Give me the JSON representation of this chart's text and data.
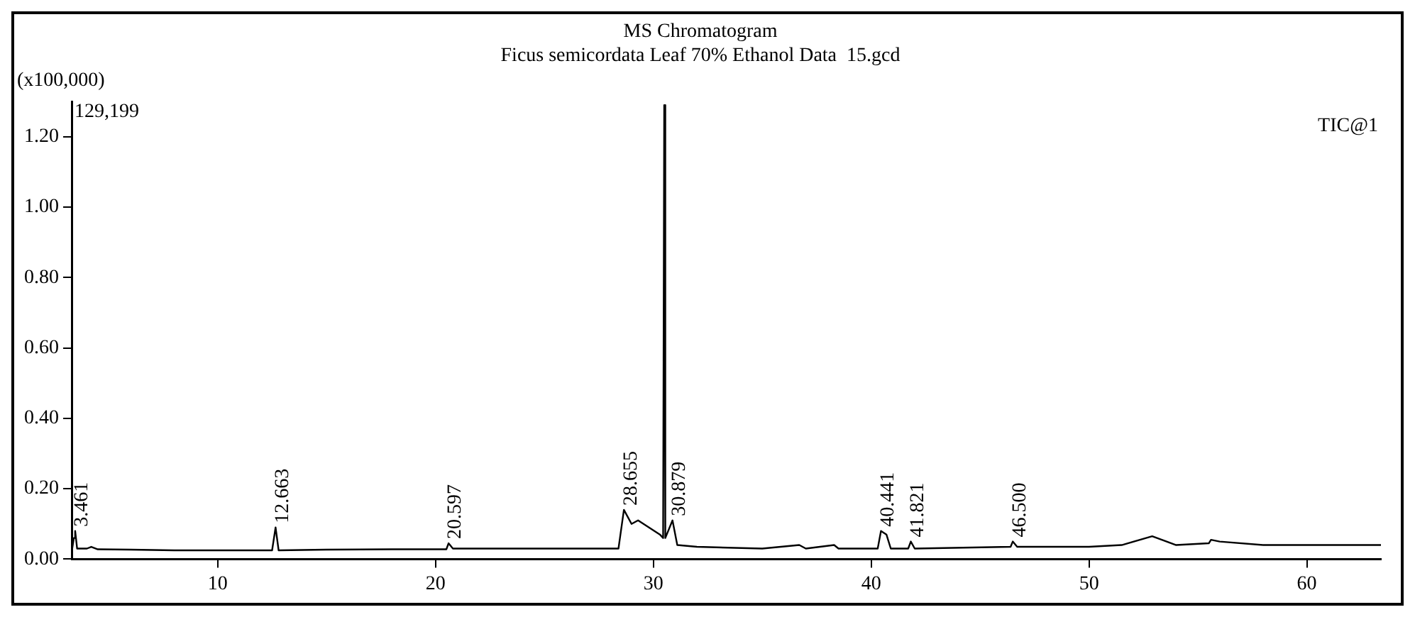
{
  "chart_data": {
    "type": "line",
    "title": "MS Chromatogram",
    "subtitle": "Ficus semicordata Leaf 70% Ethanol Data  15.gcd",
    "ylabel": "(x100,000)",
    "x": [
      3.3,
      3.4,
      3.46,
      3.55,
      4.0,
      4.2,
      4.5,
      6,
      8,
      10,
      12.5,
      12.66,
      12.8,
      15,
      18,
      20.5,
      20.6,
      20.8,
      24,
      28.4,
      28.65,
      29,
      29.3,
      29.8,
      30.3,
      30.45,
      30.5,
      30.55,
      30.88,
      31.1,
      32,
      35,
      36.7,
      37,
      38.3,
      38.5,
      40.3,
      40.45,
      40.7,
      40.9,
      41.7,
      41.82,
      42,
      46.4,
      46.5,
      46.7,
      50,
      51.5,
      52.9,
      54,
      55.5,
      55.6,
      56,
      58,
      60,
      63.4
    ],
    "series": [
      {
        "color": "#000000",
        "values": [
          0.02,
          0.06,
          0.08,
          0.03,
          0.03,
          0.035,
          0.028,
          0.027,
          0.025,
          0.025,
          0.025,
          0.09,
          0.025,
          0.027,
          0.028,
          0.028,
          0.045,
          0.03,
          0.03,
          0.03,
          0.14,
          0.1,
          0.11,
          0.09,
          0.07,
          0.06,
          1.29,
          0.06,
          0.11,
          0.04,
          0.035,
          0.03,
          0.04,
          0.03,
          0.04,
          0.03,
          0.03,
          0.08,
          0.07,
          0.03,
          0.03,
          0.05,
          0.03,
          0.035,
          0.05,
          0.035,
          0.035,
          0.04,
          0.065,
          0.04,
          0.045,
          0.055,
          0.05,
          0.04,
          0.04,
          0.04
        ]
      }
    ],
    "xlim": [
      3.3,
      63.4
    ],
    "xticks": [
      10,
      20,
      30,
      40,
      50,
      60
    ],
    "ylim": [
      0,
      1.3
    ],
    "yticks": [
      {
        "value": 0,
        "label": "0.00"
      },
      {
        "value": 0.2,
        "label": "0.20"
      },
      {
        "value": 0.4,
        "label": "0.40"
      },
      {
        "value": 0.6,
        "label": "0.60"
      },
      {
        "value": 0.8,
        "label": "0.80"
      },
      {
        "value": 1.0,
        "label": "1.00"
      },
      {
        "value": 1.2,
        "label": "1.20"
      }
    ],
    "grid": false,
    "legend": false,
    "marker": "none",
    "line_style": "solid",
    "annotations": [
      "129,199",
      "TIC@1",
      {
        "text": "3.461",
        "x": 3.46,
        "y": 0.08
      },
      {
        "text": "12.663",
        "x": 12.66,
        "y": 0.09
      },
      {
        "text": "20.597",
        "x": 20.6,
        "y": 0.045
      },
      {
        "text": "28.655",
        "x": 28.65,
        "y": 0.14
      },
      {
        "text": "30.879",
        "x": 30.88,
        "y": 0.11
      },
      {
        "text": "40.441",
        "x": 40.45,
        "y": 0.08
      },
      {
        "text": "41.821",
        "x": 41.82,
        "y": 0.05
      },
      {
        "text": "46.500",
        "x": 46.5,
        "y": 0.05
      }
    ]
  }
}
